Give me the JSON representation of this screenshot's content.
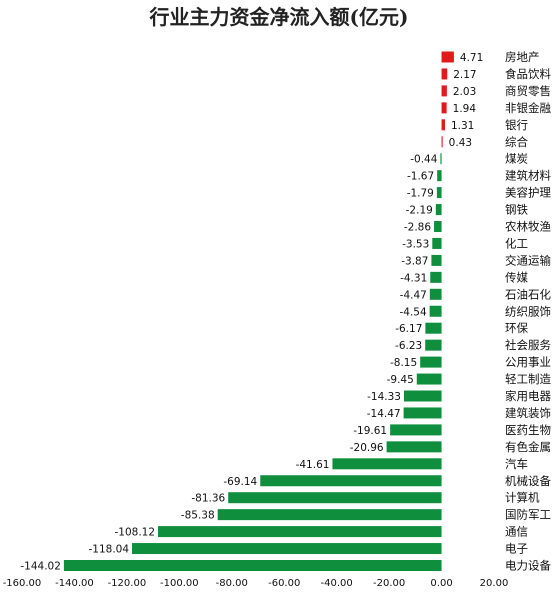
{
  "chart_data": {
    "type": "bar",
    "orientation": "horizontal",
    "title": "行业主力资金净流入额(亿元)",
    "xlim": [
      -160,
      20
    ],
    "xticks": [
      "-160.00",
      "-140.00",
      "-120.00",
      "-100.00",
      "-80.00",
      "-60.00",
      "-40.00",
      "-20.00",
      "0.00",
      "20.00"
    ],
    "xtick_values": [
      -160,
      -140,
      -120,
      -100,
      -80,
      -60,
      -40,
      -20,
      0,
      20
    ],
    "grid": false,
    "colors": {
      "positive": "#e31a1c",
      "negative": "#0f8f3d"
    },
    "categories": [
      "房地产",
      "食品饮料",
      "商贸零售",
      "非银金融",
      "银行",
      "综合",
      "煤炭",
      "建筑材料",
      "美容护理",
      "钢铁",
      "农林牧渔",
      "化工",
      "交通运输",
      "传媒",
      "石油石化",
      "纺织服饰",
      "环保",
      "社会服务",
      "公用事业",
      "轻工制造",
      "家用电器",
      "建筑装饰",
      "医药生物",
      "有色金属",
      "汽车",
      "机械设备",
      "计算机",
      "国防军工",
      "通信",
      "电子",
      "电力设备"
    ],
    "values": [
      4.71,
      2.17,
      2.03,
      1.94,
      1.31,
      0.43,
      -0.44,
      -1.67,
      -1.79,
      -2.19,
      -2.86,
      -3.53,
      -3.87,
      -4.31,
      -4.47,
      -4.54,
      -6.17,
      -6.23,
      -8.15,
      -9.45,
      -14.33,
      -14.47,
      -19.61,
      -20.96,
      -41.61,
      -69.14,
      -81.36,
      -85.38,
      -108.12,
      -118.04,
      -144.02
    ],
    "value_labels": [
      "4.71",
      "2.17",
      "2.03",
      "1.94",
      "1.31",
      "0.43",
      "-0.44",
      "-1.67",
      "-1.79",
      "-2.19",
      "-2.86",
      "-3.53",
      "-3.87",
      "-4.31",
      "-4.47",
      "-4.54",
      "-6.17",
      "-6.23",
      "-8.15",
      "-9.45",
      "-14.33",
      "-14.47",
      "-19.61",
      "-20.96",
      "-41.61",
      "-69.14",
      "-81.36",
      "-85.38",
      "-108.12",
      "-118.04",
      "-144.02"
    ]
  }
}
